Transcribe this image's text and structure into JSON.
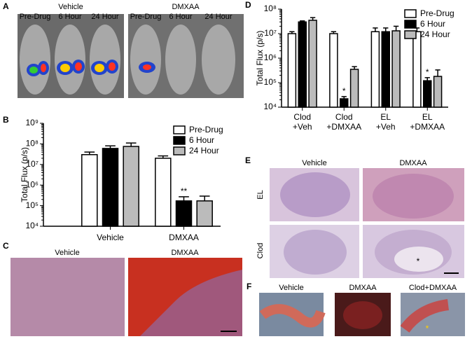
{
  "chart_data": [
    {
      "type": "bar",
      "y_label": "Total Flux (p/s)",
      "log_scale": true,
      "categories": [
        "Vehicle",
        "DMXAA"
      ],
      "series": [
        {
          "name": "Pre-Drug",
          "color": "#ffffff",
          "values": [
            30000000,
            20000000
          ],
          "errors": [
            10000000,
            6000000
          ]
        },
        {
          "name": "6 Hour",
          "color": "#000000",
          "values": [
            60000000,
            170000
          ],
          "errors": [
            20000000,
            100000
          ],
          "annotations": [
            null,
            "**"
          ]
        },
        {
          "name": "24 Hour",
          "color": "#bbbbbb",
          "values": [
            75000000,
            170000
          ],
          "errors": [
            35000000,
            120000
          ]
        }
      ],
      "ylim": [
        10000,
        1000000000
      ],
      "yticks": [
        {
          "value": 10000,
          "label": "10⁴"
        },
        {
          "value": 100000,
          "label": "10⁵"
        },
        {
          "value": 1000000,
          "label": "10⁶"
        },
        {
          "value": 10000000,
          "label": "10⁷"
        },
        {
          "value": 100000000,
          "label": "10⁸"
        },
        {
          "value": 1000000000,
          "label": "10⁹"
        }
      ],
      "legend": "upper right"
    },
    {
      "type": "bar",
      "y_label": "Total Flux (p/s)",
      "log_scale": true,
      "categories": [
        "Clod\n+Veh",
        "Clod\n+DMXAA",
        "EL\n+Veh",
        "EL\n+DMXAA"
      ],
      "series": [
        {
          "name": "Pre-Drug",
          "color": "#ffffff",
          "values": [
            10000000,
            10000000,
            12000000,
            12000000
          ],
          "errors": [
            2000000,
            2000000,
            5000000,
            5000000
          ]
        },
        {
          "name": "6 Hour",
          "color": "#000000",
          "values": [
            30000000,
            22000,
            12000000,
            120000
          ],
          "errors": [
            3000000,
            5000,
            5000000,
            40000
          ],
          "annotations": [
            null,
            "*",
            null,
            "*"
          ]
        },
        {
          "name": "24 Hour",
          "color": "#bbbbbb",
          "values": [
            35000000,
            350000,
            13000000,
            180000
          ],
          "errors": [
            10000000,
            100000,
            7000000,
            150000
          ]
        }
      ],
      "ylim": [
        10000,
        100000000
      ],
      "yticks": [
        {
          "value": 10000,
          "label": "10⁴"
        },
        {
          "value": 100000,
          "label": "10⁵"
        },
        {
          "value": 1000000,
          "label": "10⁶"
        },
        {
          "value": 10000000,
          "label": "10⁷"
        },
        {
          "value": 100000000,
          "label": "10⁸"
        }
      ],
      "legend": "upper right"
    }
  ],
  "panels": {
    "A": {
      "letter": "A",
      "groups": [
        "Vehicle",
        "DMXAA"
      ],
      "times": [
        "Pre-Drug",
        "6 Hour",
        "24 Hour"
      ]
    },
    "B": {
      "letter": "B"
    },
    "C": {
      "letter": "C",
      "labels": [
        "Vehicle",
        "DMXAA"
      ]
    },
    "D": {
      "letter": "D"
    },
    "E": {
      "letter": "E",
      "columns": [
        "Vehicle",
        "DMXAA"
      ],
      "rows": [
        "EL",
        "Clod"
      ],
      "marker": "*"
    },
    "F": {
      "letter": "F",
      "labels": [
        "Vehicle",
        "DMXAA",
        "Clod+DMXAA"
      ],
      "marker": "*"
    }
  }
}
